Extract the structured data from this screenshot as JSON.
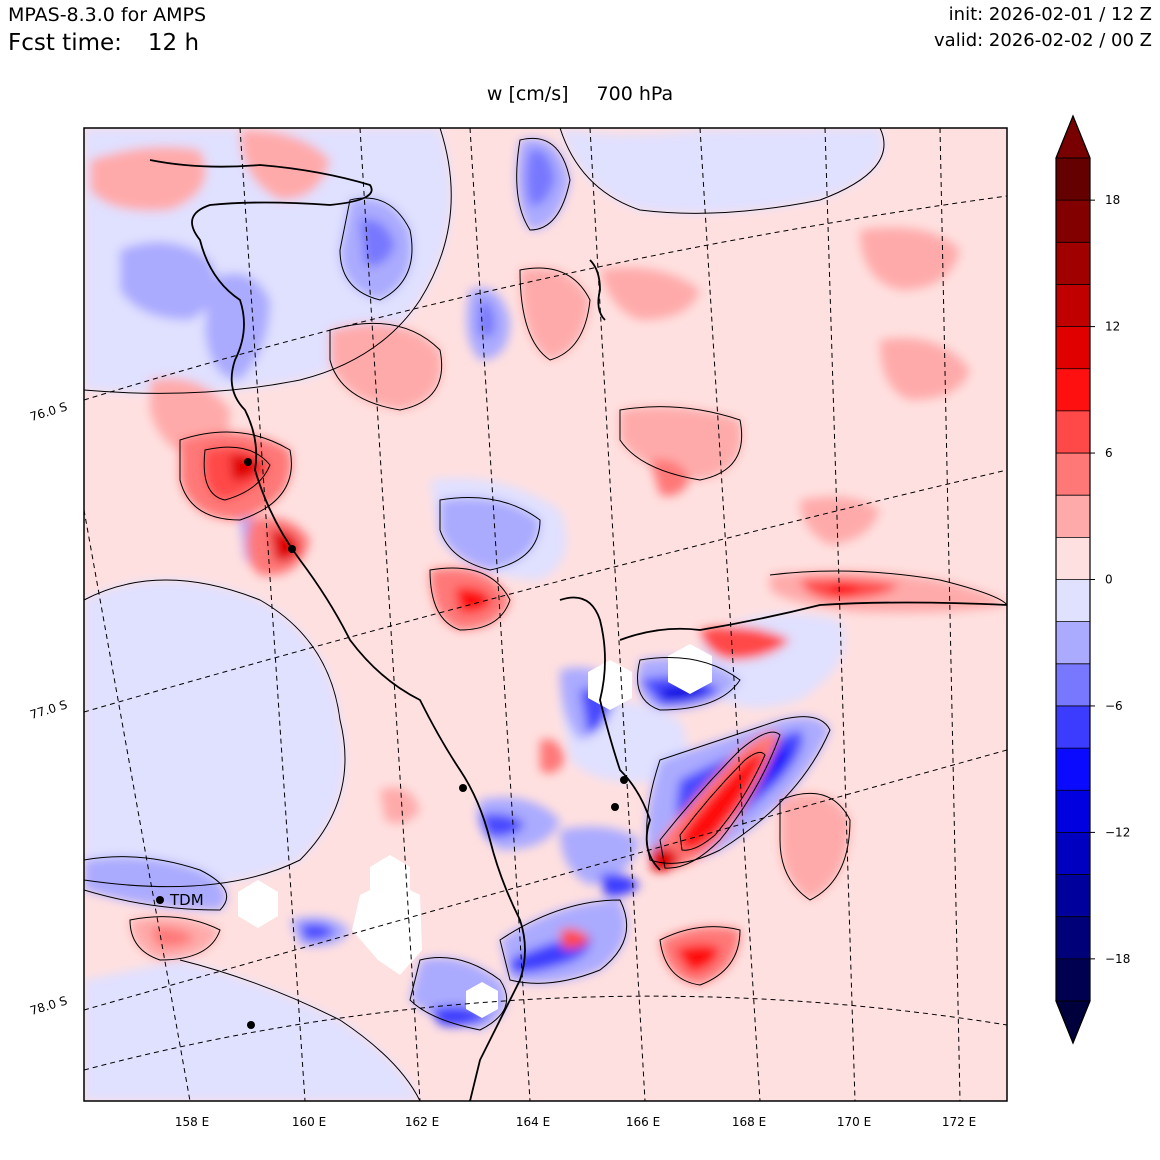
{
  "header": {
    "model": "MPAS-8.3.0 for AMPS",
    "fcst_label": "Fcst time:",
    "fcst_value": "12 h",
    "init": "init: 2026-02-01 / 12 Z",
    "valid": "valid: 2026-02-02 / 00 Z"
  },
  "plot": {
    "variable": "w [cm/s]",
    "level": "700 hPa",
    "station_label": "TDM"
  },
  "map": {
    "lon_labels": [
      "158 E",
      "160 E",
      "162 E",
      "164 E",
      "166 E",
      "168 E",
      "170 E",
      "172 E"
    ],
    "lat_labels": [
      "76.0 S",
      "77.0 S",
      "78.0 S"
    ]
  },
  "colorbar": {
    "levels": [
      -20,
      -18,
      -16,
      -14,
      -12,
      -10,
      -8,
      -6,
      -4,
      -2,
      0,
      2,
      4,
      6,
      8,
      10,
      12,
      14,
      16,
      18,
      20
    ],
    "tick_values": [
      -18,
      -12,
      -6,
      0,
      6,
      12,
      18
    ],
    "tick_labels": [
      "−18",
      "−12",
      "−6",
      "0",
      "6",
      "12",
      "18"
    ],
    "colors": [
      "#000050",
      "#000078",
      "#00009c",
      "#0000c0",
      "#0000e0",
      "#0a0aff",
      "#3c3cff",
      "#7878ff",
      "#aaaaff",
      "#e0e0ff",
      "#ffe0e0",
      "#ffaaaa",
      "#ff7878",
      "#ff4848",
      "#ff1010",
      "#e00000",
      "#c00000",
      "#a00000",
      "#820000",
      "#640000"
    ],
    "under_color": "#00003c",
    "over_color": "#780000"
  }
}
